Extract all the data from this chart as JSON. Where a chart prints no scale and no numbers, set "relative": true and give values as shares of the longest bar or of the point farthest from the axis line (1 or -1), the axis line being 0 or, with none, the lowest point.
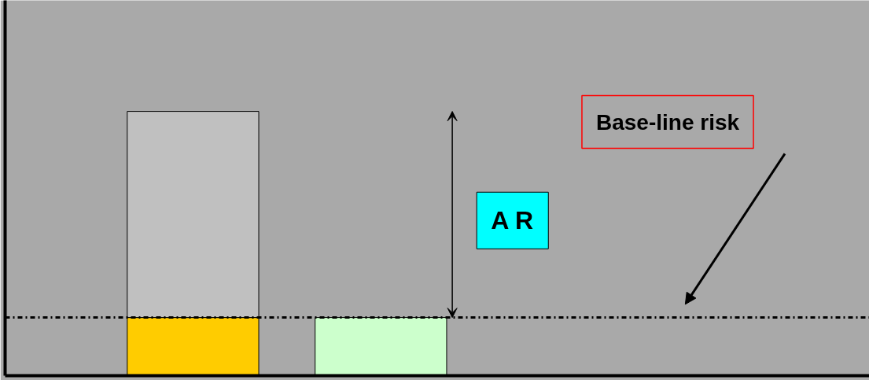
{
  "chart_data": {
    "type": "bar",
    "relative": true,
    "stacked": true,
    "categories": [
      null,
      null
    ],
    "series": [
      {
        "color": "#ffcc00",
        "values": [
          0.22,
          null
        ]
      },
      {
        "color": "#c0c0c0",
        "values": [
          0.78,
          null
        ]
      },
      {
        "color": "#ccffcc",
        "values": [
          null,
          0.22
        ]
      }
    ],
    "ref_lines": [
      {
        "axis": "y",
        "value": 0.22,
        "label": "Base-line risk",
        "color": "#000000",
        "line_style": "dashdot"
      }
    ],
    "annotations": [
      "A R"
    ]
  }
}
